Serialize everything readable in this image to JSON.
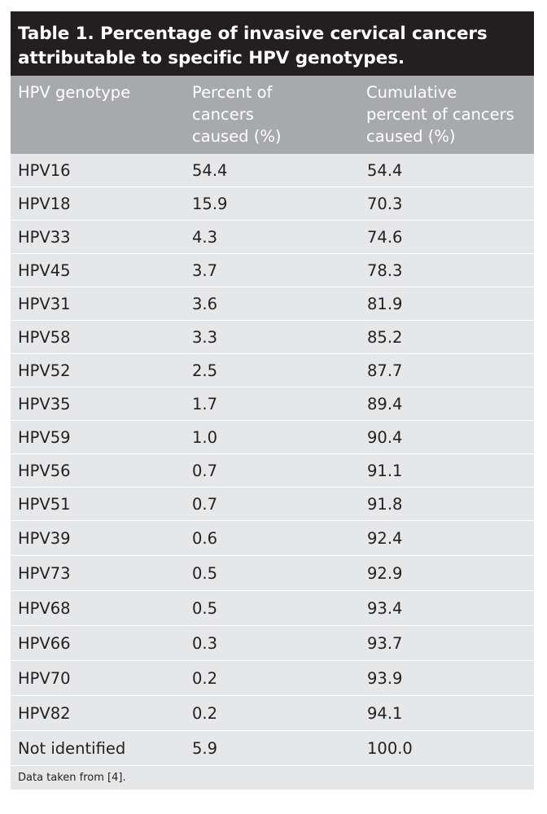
{
  "table": {
    "title_line1": "Table 1. Percentage of invasive cervical cancers",
    "title_line2": "attributable to specific HPV genotypes.",
    "headers": {
      "col1": "HPV genotype",
      "col2_line1": "Percent of",
      "col2_line2": "cancers",
      "col2_line3": "caused (%)",
      "col3_line1": "Cumulative",
      "col3_line2": "percent of cancers",
      "col3_line3": "caused (%)"
    },
    "rows": [
      {
        "genotype": "HPV16",
        "percent": "54.4",
        "cumulative": "54.4"
      },
      {
        "genotype": "HPV18",
        "percent": "15.9",
        "cumulative": "70.3"
      },
      {
        "genotype": "HPV33",
        "percent": "4.3",
        "cumulative": "74.6"
      },
      {
        "genotype": "HPV45",
        "percent": "3.7",
        "cumulative": "78.3"
      },
      {
        "genotype": "HPV31",
        "percent": "3.6",
        "cumulative": "81.9"
      },
      {
        "genotype": "HPV58",
        "percent": "3.3",
        "cumulative": "85.2"
      },
      {
        "genotype": "HPV52",
        "percent": "2.5",
        "cumulative": "87.7"
      },
      {
        "genotype": "HPV35",
        "percent": "1.7",
        "cumulative": "89.4"
      },
      {
        "genotype": "HPV59",
        "percent": "1.0",
        "cumulative": "90.4"
      },
      {
        "genotype": "HPV56",
        "percent": "0.7",
        "cumulative": "91.1"
      },
      {
        "genotype": "HPV51",
        "percent": "0.7",
        "cumulative": "91.8"
      },
      {
        "genotype": "HPV39",
        "percent": "0.6",
        "cumulative": "92.4"
      },
      {
        "genotype": "HPV73",
        "percent": "0.5",
        "cumulative": "92.9"
      },
      {
        "genotype": "HPV68",
        "percent": "0.5",
        "cumulative": "93.4"
      },
      {
        "genotype": "HPV66",
        "percent": "0.3",
        "cumulative": "93.7"
      },
      {
        "genotype": "HPV70",
        "percent": "0.2",
        "cumulative": "93.9"
      },
      {
        "genotype": "HPV82",
        "percent": "0.2",
        "cumulative": "94.1"
      },
      {
        "genotype": "Not identified",
        "percent": "5.9",
        "cumulative": "100.0"
      }
    ],
    "footnote": "Data taken from [4]."
  },
  "colors": {
    "title_bg": "#231f20",
    "header_bg": "#a7a9ac",
    "body_bg": "#e6e7e8"
  }
}
